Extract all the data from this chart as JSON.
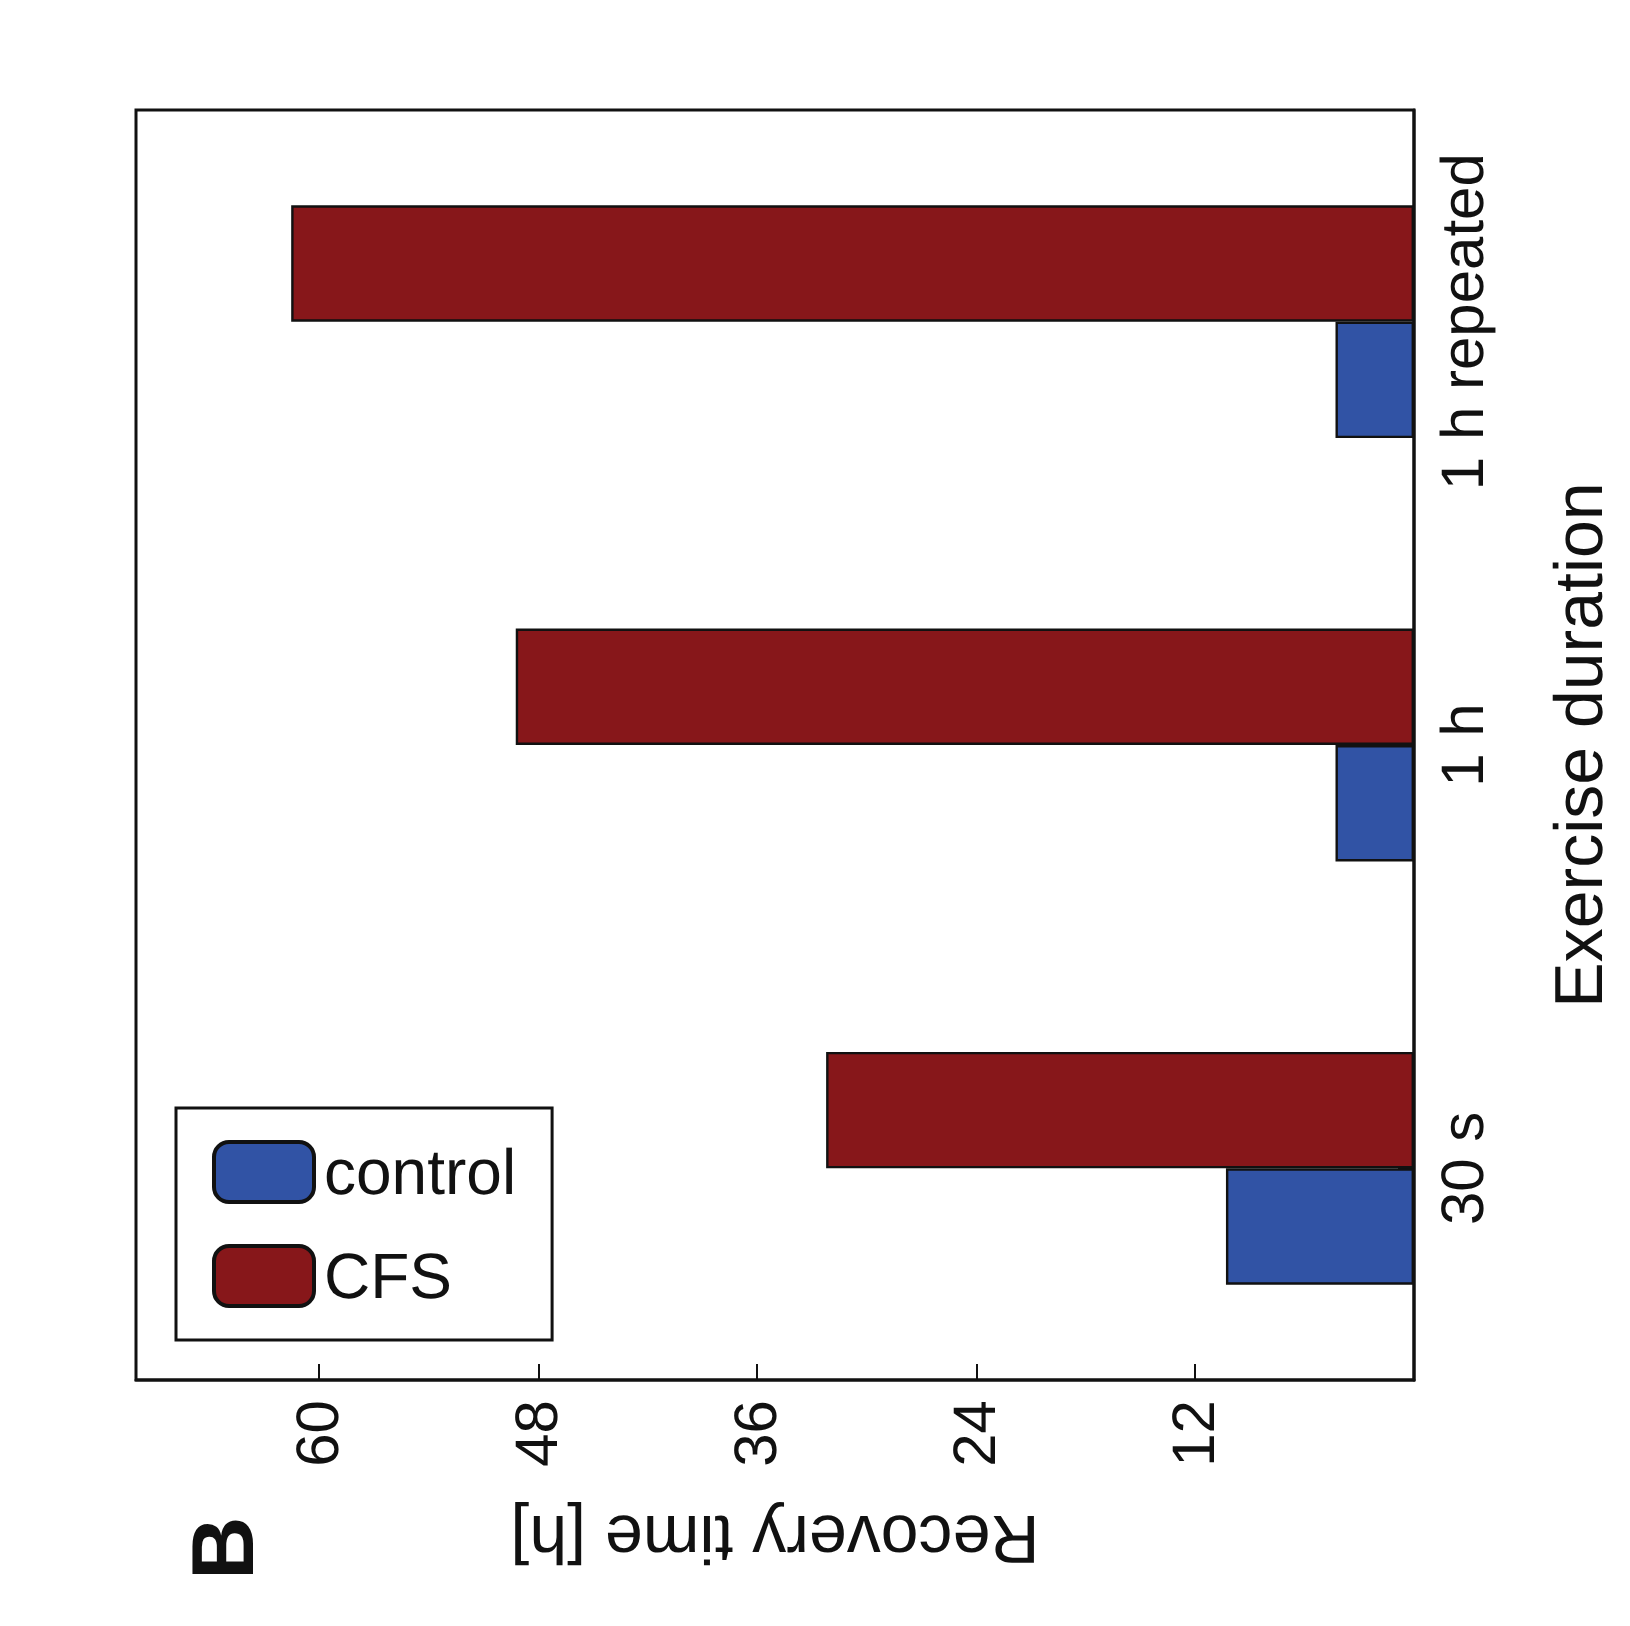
{
  "chart_data": {
    "type": "bar",
    "orientation": "horizontal",
    "xlabel": "Recovery time [h]",
    "ylabel": "Exercise duration",
    "categories": [
      "1 h repeated",
      "1 h",
      "30 s"
    ],
    "series": [
      {
        "name": "control",
        "color": "#3153a5",
        "values": [
          4.3,
          4.3,
          10.3
        ]
      },
      {
        "name": "CFS",
        "color": "#87171a",
        "values": [
          61.5,
          49.2,
          32.2
        ]
      }
    ],
    "xlim": [
      70,
      0
    ],
    "xticks": [
      60,
      48,
      36,
      24,
      12
    ],
    "grid": false,
    "legend": "bottom left",
    "annotations": [
      "B"
    ]
  }
}
